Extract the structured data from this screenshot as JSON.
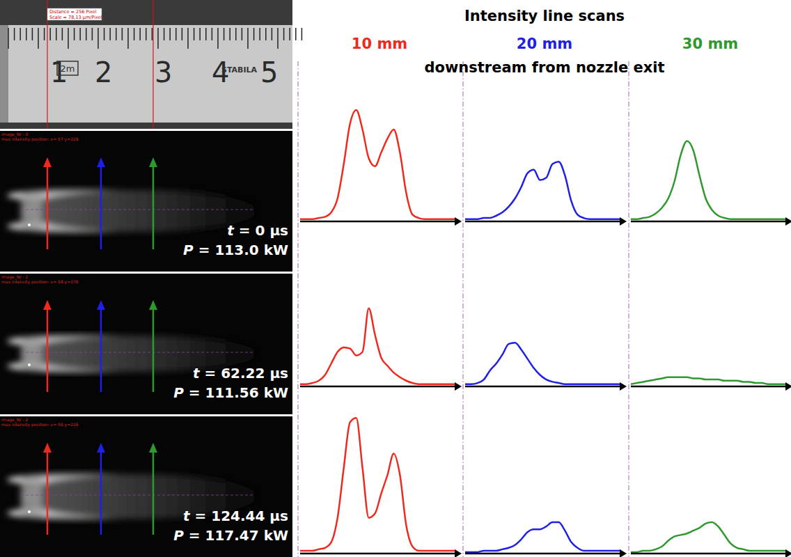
{
  "title": "Intensity line scans",
  "subtitle": "downstream from nozzle exit",
  "columns": [
    {
      "label": "10 mm",
      "color": "#ee2a1e"
    },
    {
      "label": "20 mm",
      "color": "#1f1fe6"
    },
    {
      "label": "30 mm",
      "color": "#2e9a2e"
    }
  ],
  "ruler": {
    "overlay": [
      "Distance = 256 Pixel",
      "Scale = 78,13 µm/Pixel"
    ],
    "labels": [
      1,
      2,
      3,
      4,
      5
    ],
    "mark": "2m",
    "brand": "STABILA"
  },
  "frames": [
    {
      "image_nr": "image_Nr : 0",
      "max_pos": "max intensity position: x= 57 y=229",
      "t": "t = 0 µs",
      "P": "P = 113.0 kW"
    },
    {
      "image_nr": "image_Nr : 1",
      "max_pos": "max intensity position: x= 58 y=176",
      "t": "t = 62.22 µs",
      "P": "P = 111.56 kW"
    },
    {
      "image_nr": "image_Nr : 2",
      "max_pos": "max intensity position: x= 56 y=226",
      "t": "t = 124.44 µs",
      "P": "P = 117.47 kW"
    }
  ],
  "chart_data": [
    {
      "type": "line",
      "color": "#ee2a1e",
      "xlim": [
        0,
        100
      ],
      "ylim": [
        0,
        100
      ],
      "tick_labels": false,
      "x": [
        0,
        4,
        8,
        12,
        16,
        20,
        24,
        28,
        32,
        36,
        40,
        44,
        48,
        52,
        56,
        60,
        64,
        68,
        72,
        76,
        80,
        84,
        88,
        92,
        96,
        100
      ],
      "values": [
        2,
        2,
        2,
        3,
        4,
        8,
        20,
        50,
        85,
        97,
        80,
        55,
        48,
        60,
        72,
        80,
        60,
        25,
        6,
        3,
        2,
        2,
        2,
        2,
        2,
        2
      ]
    },
    {
      "type": "line",
      "color": "#1f1fe6",
      "xlim": [
        0,
        100
      ],
      "ylim": [
        0,
        100
      ],
      "tick_labels": false,
      "x": [
        0,
        4,
        8,
        12,
        16,
        20,
        24,
        28,
        32,
        36,
        40,
        44,
        48,
        52,
        56,
        60,
        64,
        68,
        72,
        76,
        80,
        84,
        88,
        92,
        96,
        100
      ],
      "values": [
        2,
        2,
        2,
        3,
        3,
        5,
        8,
        13,
        20,
        30,
        42,
        45,
        36,
        38,
        50,
        52,
        40,
        18,
        6,
        3,
        2,
        2,
        2,
        2,
        2,
        2
      ]
    },
    {
      "type": "line",
      "color": "#2e9a2e",
      "xlim": [
        0,
        100
      ],
      "ylim": [
        0,
        100
      ],
      "tick_labels": false,
      "x": [
        0,
        4,
        8,
        12,
        16,
        20,
        24,
        28,
        32,
        36,
        40,
        44,
        48,
        52,
        56,
        60,
        64,
        68,
        72,
        76,
        80,
        84,
        88,
        92,
        96,
        100
      ],
      "values": [
        2,
        2,
        3,
        4,
        7,
        12,
        20,
        35,
        58,
        70,
        62,
        40,
        20,
        10,
        5,
        3,
        2,
        2,
        2,
        2,
        2,
        2,
        2,
        2,
        2,
        2
      ]
    },
    {
      "type": "line",
      "color": "#ee2a1e",
      "xlim": [
        0,
        100
      ],
      "ylim": [
        0,
        100
      ],
      "tick_labels": false,
      "x": [
        0,
        4,
        8,
        12,
        16,
        20,
        24,
        28,
        32,
        36,
        40,
        44,
        48,
        52,
        56,
        60,
        64,
        68,
        72,
        76,
        80,
        84,
        88,
        92,
        96,
        100
      ],
      "values": [
        2,
        2,
        3,
        5,
        10,
        20,
        30,
        34,
        33,
        27,
        30,
        68,
        45,
        25,
        18,
        12,
        8,
        5,
        3,
        2,
        2,
        2,
        2,
        2,
        2,
        2
      ]
    },
    {
      "type": "line",
      "color": "#1f1fe6",
      "xlim": [
        0,
        100
      ],
      "ylim": [
        0,
        100
      ],
      "tick_labels": false,
      "x": [
        0,
        4,
        8,
        12,
        16,
        20,
        24,
        28,
        32,
        36,
        40,
        44,
        48,
        52,
        56,
        60,
        64,
        68,
        72,
        76,
        80,
        84,
        88,
        92,
        96,
        100
      ],
      "values": [
        2,
        2,
        3,
        6,
        14,
        20,
        28,
        37,
        38,
        32,
        24,
        16,
        10,
        6,
        4,
        3,
        2,
        2,
        2,
        2,
        2,
        2,
        2,
        2,
        2,
        2
      ]
    },
    {
      "type": "line",
      "color": "#2e9a2e",
      "xlim": [
        0,
        100
      ],
      "ylim": [
        0,
        100
      ],
      "tick_labels": false,
      "x": [
        0,
        4,
        8,
        12,
        16,
        20,
        24,
        28,
        32,
        36,
        40,
        44,
        48,
        52,
        56,
        60,
        64,
        68,
        72,
        76,
        80,
        84,
        88,
        92,
        96,
        100
      ],
      "values": [
        2,
        3,
        4,
        5,
        6,
        7,
        8,
        8,
        8,
        8,
        7,
        7,
        6,
        6,
        6,
        5,
        5,
        5,
        4,
        4,
        3,
        3,
        2,
        2,
        2,
        2
      ]
    },
    {
      "type": "line",
      "color": "#ee2a1e",
      "xlim": [
        0,
        100
      ],
      "ylim": [
        0,
        100
      ],
      "tick_labels": false,
      "x": [
        0,
        4,
        8,
        12,
        16,
        20,
        24,
        28,
        32,
        36,
        40,
        44,
        48,
        52,
        56,
        60,
        64,
        68,
        72,
        76,
        80,
        84,
        88,
        92,
        96,
        100
      ],
      "values": [
        2,
        2,
        2,
        3,
        4,
        8,
        25,
        60,
        92,
        95,
        60,
        25,
        28,
        42,
        55,
        70,
        55,
        20,
        5,
        2,
        2,
        2,
        2,
        2,
        2,
        2
      ]
    },
    {
      "type": "line",
      "color": "#1f1fe6",
      "xlim": [
        0,
        100
      ],
      "ylim": [
        0,
        100
      ],
      "tick_labels": false,
      "x": [
        0,
        4,
        8,
        12,
        16,
        20,
        24,
        28,
        32,
        36,
        40,
        44,
        48,
        52,
        56,
        60,
        64,
        68,
        72,
        76,
        80,
        84,
        88,
        92,
        96,
        100
      ],
      "values": [
        1,
        1,
        1,
        2,
        2,
        2,
        3,
        4,
        6,
        10,
        15,
        17,
        17,
        19,
        22,
        22,
        16,
        8,
        4,
        2,
        2,
        2,
        2,
        2,
        2,
        2
      ]
    },
    {
      "type": "line",
      "color": "#2e9a2e",
      "xlim": [
        0,
        100
      ],
      "ylim": [
        0,
        100
      ],
      "tick_labels": false,
      "x": [
        0,
        4,
        8,
        12,
        16,
        20,
        24,
        28,
        32,
        36,
        40,
        44,
        48,
        52,
        56,
        60,
        64,
        68,
        72,
        76,
        80,
        84,
        88,
        92,
        96,
        100
      ],
      "values": [
        1,
        1,
        2,
        2,
        3,
        5,
        9,
        12,
        13,
        14,
        16,
        18,
        21,
        22,
        19,
        13,
        7,
        4,
        3,
        2,
        2,
        2,
        2,
        2,
        2,
        2
      ]
    }
  ]
}
